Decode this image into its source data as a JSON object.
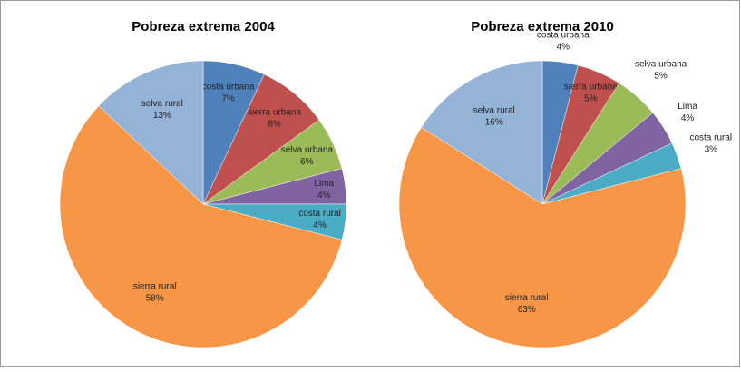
{
  "chart_data": [
    {
      "type": "pie",
      "title": "Pobreza extrema 2004",
      "categories": [
        "costa urbana",
        "sierra urbana",
        "selva urbana",
        "Lima",
        "costa rural",
        "sierra rural",
        "selva rural"
      ],
      "values": [
        7,
        8,
        6,
        4,
        4,
        58,
        13
      ],
      "value_labels": [
        "7%",
        "8%",
        "6%",
        "4%",
        "4%",
        "58%",
        "13%"
      ],
      "colors": [
        "#4f81bd",
        "#c0504d",
        "#9bbb59",
        "#8064a2",
        "#4bacc6",
        "#f79646",
        "#95b3d7"
      ]
    },
    {
      "type": "pie",
      "title": "Pobreza extrema 2010",
      "categories": [
        "costa urbana",
        "sierra urbana",
        "selva urbana",
        "Lima",
        "costa rural",
        "sierra rural",
        "selva rural"
      ],
      "values": [
        4,
        5,
        5,
        4,
        3,
        63,
        16
      ],
      "value_labels": [
        "4%",
        "5%",
        "5%",
        "4%",
        "3%",
        "63%",
        "16%"
      ],
      "colors": [
        "#4f81bd",
        "#c0504d",
        "#9bbb59",
        "#8064a2",
        "#4bacc6",
        "#f79646",
        "#95b3d7"
      ]
    }
  ]
}
